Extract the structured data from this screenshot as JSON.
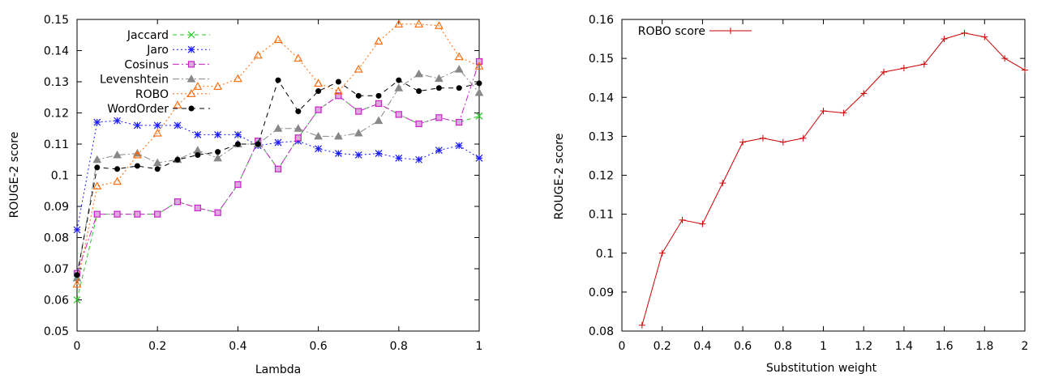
{
  "chart_data": [
    {
      "type": "line",
      "xlabel": "Lambda",
      "ylabel": "ROUGE-2 score",
      "xlim": [
        0,
        1
      ],
      "ylim": [
        0.05,
        0.15
      ],
      "xticks": [
        "0",
        "0.2",
        "0.4",
        "0.6",
        "0.8",
        "1"
      ],
      "yticks": [
        "0.05",
        "0.06",
        "0.07",
        "0.08",
        "0.09",
        "0.1",
        "0.11",
        "0.12",
        "0.13",
        "0.14",
        "0.15"
      ],
      "grid": false,
      "legend_position": "top-left",
      "x": [
        0,
        0.05,
        0.1,
        0.15,
        0.2,
        0.25,
        0.3,
        0.35,
        0.4,
        0.45,
        0.5,
        0.55,
        0.6,
        0.65,
        0.7,
        0.75,
        0.8,
        0.85,
        0.9,
        0.95,
        1
      ],
      "series": [
        {
          "name": "Jaccard",
          "color": "#22cc22",
          "marker": "x",
          "dash": "5,4",
          "values": [
            0.06,
            0.0875,
            0.0875,
            0.0875,
            0.0875,
            0.0915,
            0.0895,
            0.088,
            0.097,
            0.111,
            0.102,
            0.112,
            0.121,
            0.1255,
            0.1205,
            0.123,
            0.1195,
            0.1165,
            0.1185,
            0.117,
            0.119
          ]
        },
        {
          "name": "Jaro",
          "color": "#1a1aff",
          "marker": "star",
          "dash": "2,3",
          "values": [
            0.0825,
            0.117,
            0.1175,
            0.116,
            0.116,
            0.116,
            0.113,
            0.113,
            0.113,
            0.1095,
            0.1105,
            0.111,
            0.1085,
            0.107,
            0.1065,
            0.107,
            0.1055,
            0.105,
            0.108,
            0.1095,
            0.1055
          ]
        },
        {
          "name": "Cosinus",
          "color": "#cc22cc",
          "marker": "square",
          "dash": "8,3,2,3",
          "values": [
            0.0685,
            0.0875,
            0.0875,
            0.0875,
            0.0875,
            0.0915,
            0.0895,
            0.088,
            0.097,
            0.111,
            0.102,
            0.112,
            0.121,
            0.1255,
            0.1205,
            0.123,
            0.1195,
            0.1165,
            0.1185,
            0.117,
            0.1365
          ]
        },
        {
          "name": "Levenshtein",
          "color": "#888888",
          "marker": "triangle-filled",
          "dash": "8,3,2,3",
          "values": [
            0.067,
            0.105,
            0.1065,
            0.107,
            0.104,
            0.105,
            0.108,
            0.1055,
            0.11,
            0.11,
            0.115,
            0.115,
            0.1125,
            0.1125,
            0.1135,
            0.1175,
            0.128,
            0.1325,
            0.131,
            0.134,
            0.1265
          ]
        },
        {
          "name": "ROBO",
          "color": "#ff6600",
          "marker": "triangle",
          "dash": "2,3",
          "values": [
            0.065,
            0.0965,
            0.098,
            0.1065,
            0.1135,
            0.1225,
            0.1285,
            0.1285,
            0.131,
            0.1385,
            0.1435,
            0.1375,
            0.1295,
            0.127,
            0.134,
            0.143,
            0.1485,
            0.1485,
            0.148,
            0.138,
            0.135
          ]
        },
        {
          "name": "WordOrder",
          "color": "#000000",
          "marker": "dot",
          "dash": "6,5",
          "values": [
            0.068,
            0.1025,
            0.102,
            0.103,
            0.102,
            0.105,
            0.1065,
            0.1075,
            0.11,
            0.11,
            0.1305,
            0.1205,
            0.127,
            0.13,
            0.1255,
            0.1255,
            0.1305,
            0.127,
            0.128,
            0.128,
            0.1295
          ]
        }
      ]
    },
    {
      "type": "line",
      "xlabel": "Substitution weight",
      "ylabel": "ROUGE-2 score",
      "xlim": [
        0,
        2
      ],
      "ylim": [
        0.08,
        0.16
      ],
      "xticks": [
        "0",
        "0.2",
        "0.4",
        "0.6",
        "0.8",
        "1",
        "1.2",
        "1.4",
        "1.6",
        "1.8",
        "2"
      ],
      "yticks": [
        "0.08",
        "0.09",
        "0.1",
        "0.11",
        "0.12",
        "0.13",
        "0.14",
        "0.15",
        "0.16"
      ],
      "grid": false,
      "legend_position": "top-left",
      "x": [
        0.1,
        0.2,
        0.3,
        0.4,
        0.5,
        0.6,
        0.7,
        0.8,
        0.9,
        1.0,
        1.1,
        1.2,
        1.3,
        1.4,
        1.5,
        1.6,
        1.7,
        1.8,
        1.9,
        2.0
      ],
      "series": [
        {
          "name": "ROBO score",
          "color": "#cc0000",
          "marker": "plus",
          "dash": "",
          "values": [
            0.0815,
            0.1,
            0.1085,
            0.1075,
            0.118,
            0.1285,
            0.1295,
            0.1285,
            0.1295,
            0.1365,
            0.136,
            0.141,
            0.1465,
            0.1475,
            0.1485,
            0.155,
            0.1565,
            0.1555,
            0.15,
            0.147
          ]
        }
      ]
    }
  ]
}
